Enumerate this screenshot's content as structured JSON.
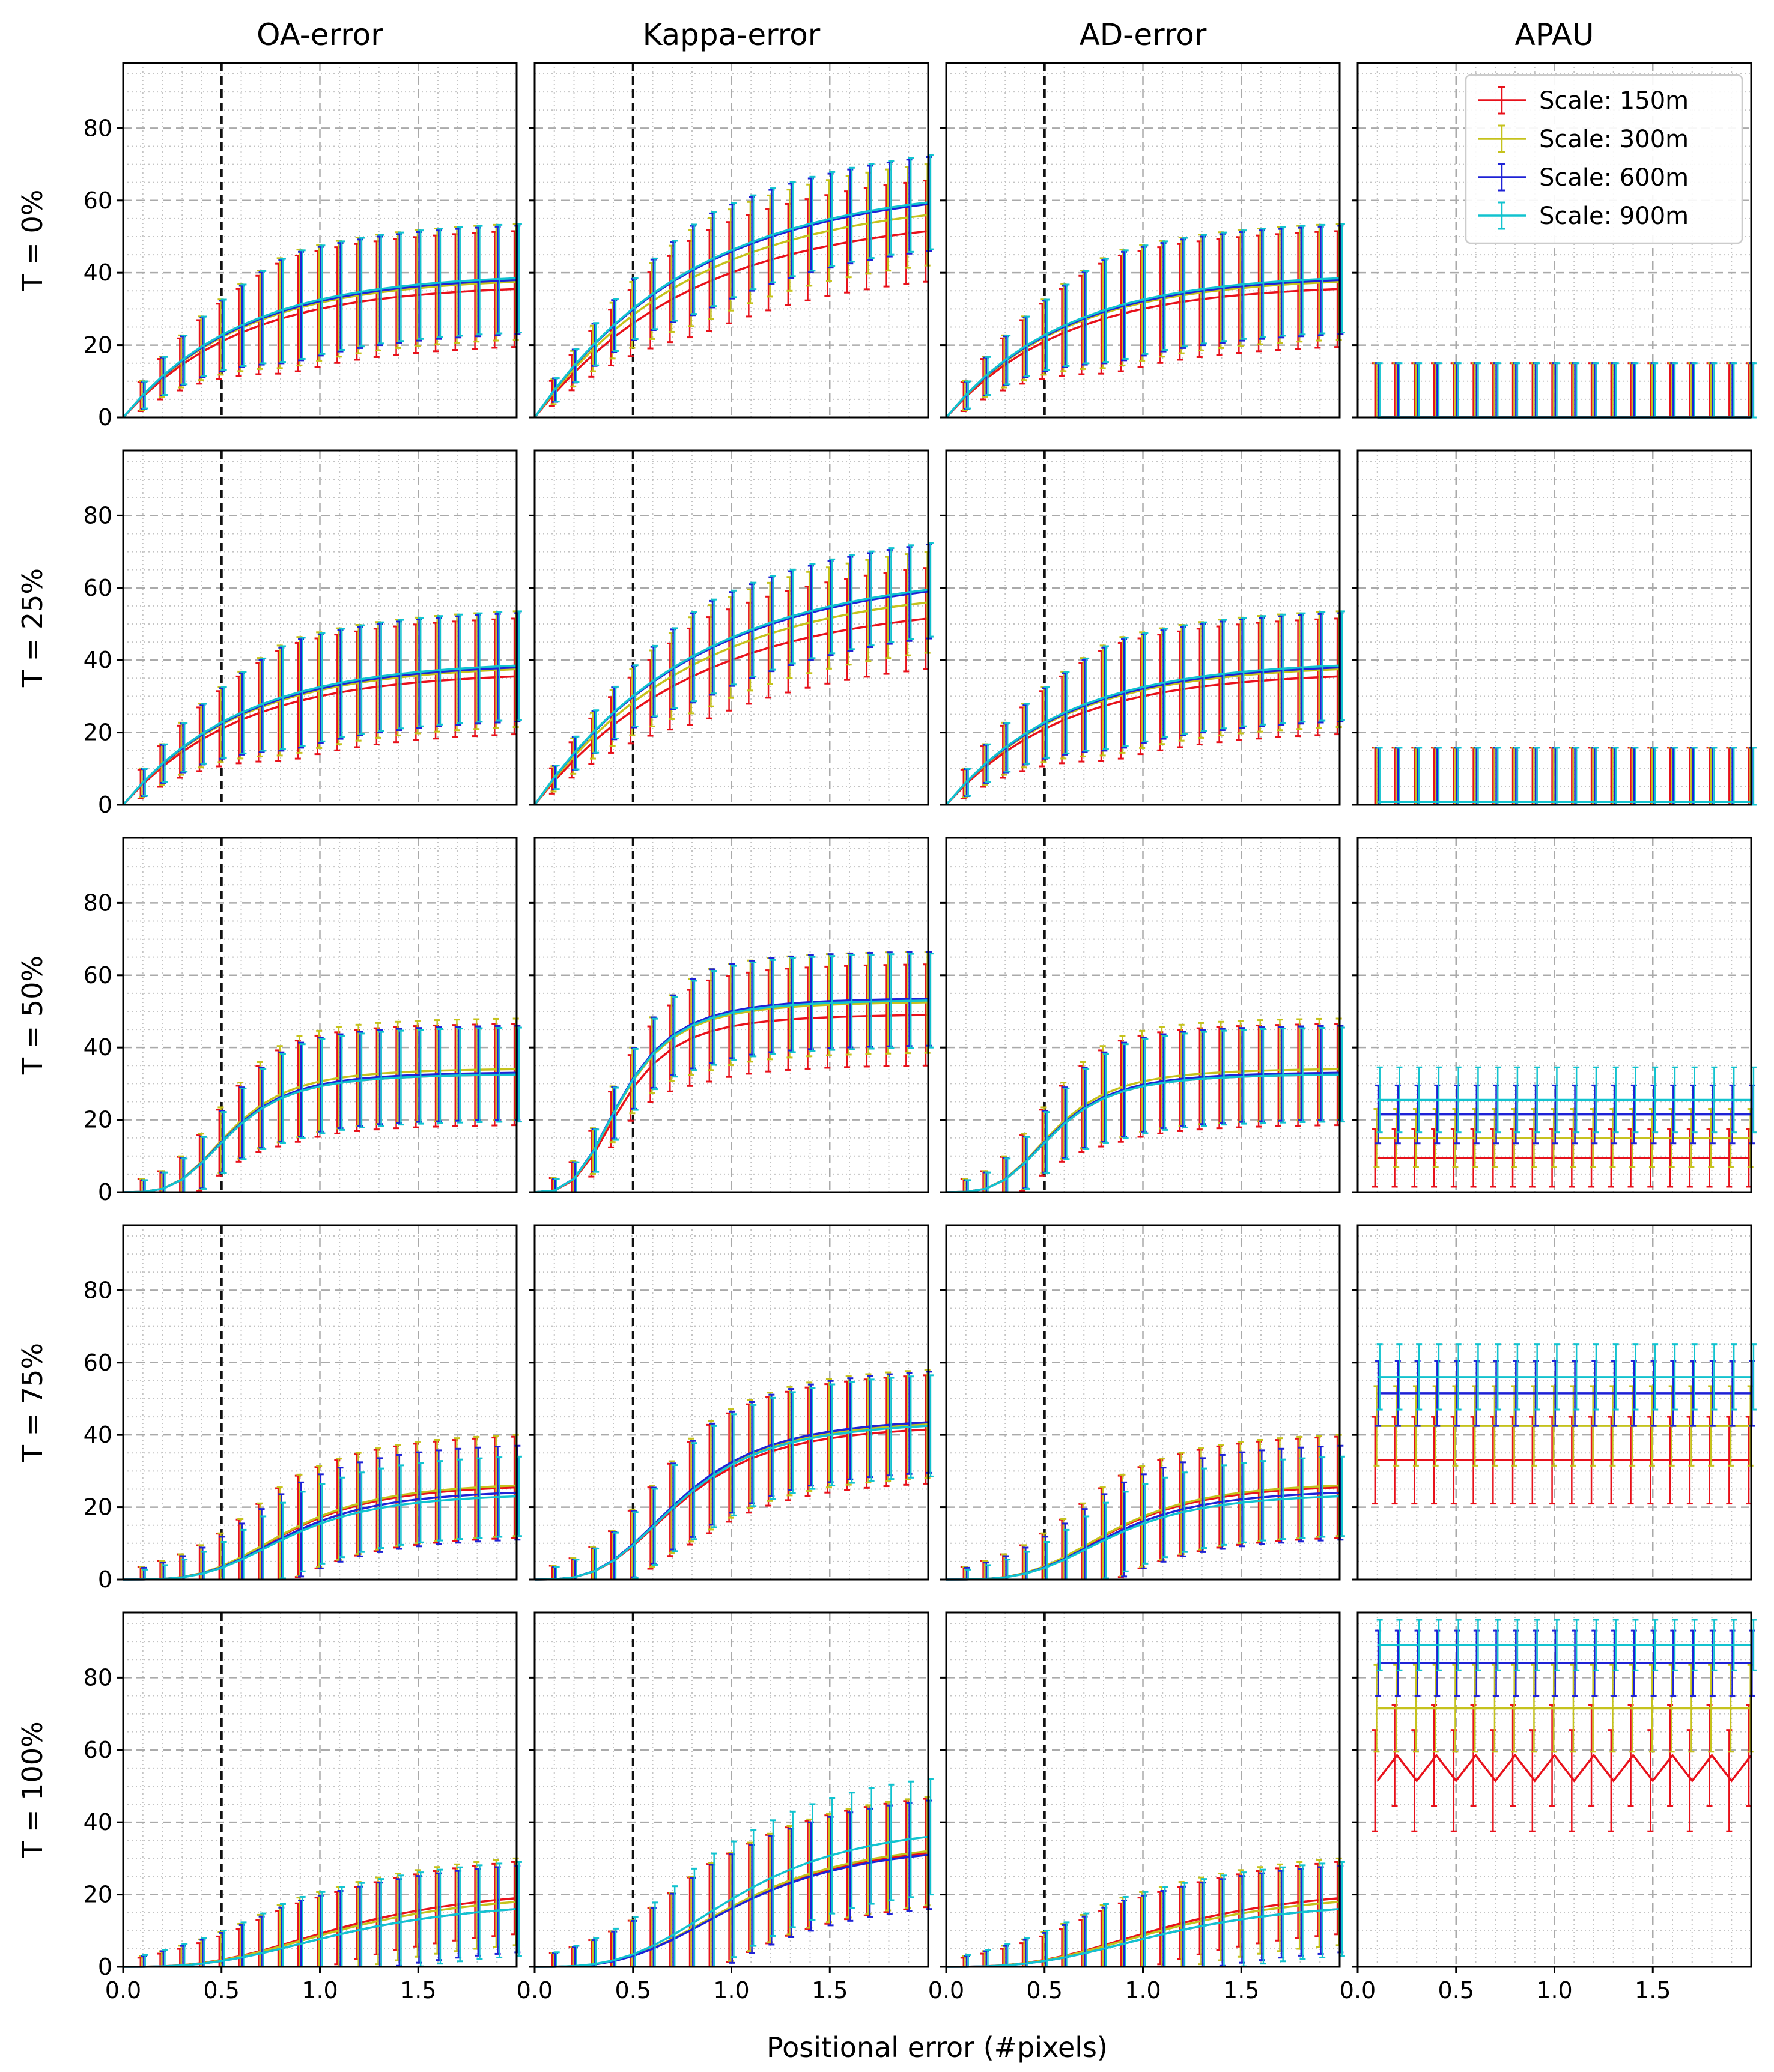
{
  "chart_data": {
    "type": "line",
    "title": "",
    "xlabel": "Positional error (#pixels)",
    "ylabel": "",
    "xlim": [
      0,
      2.0
    ],
    "ylim": [
      0,
      98
    ],
    "xticks": [
      0.0,
      0.5,
      1.0,
      1.5
    ],
    "xtick_labels": [
      "0.0",
      "0.5",
      "1.0",
      "1.5"
    ],
    "yticks": [
      0,
      20,
      40,
      60,
      80
    ],
    "ytick_labels": [
      "0",
      "20",
      "40",
      "60",
      "80"
    ],
    "grid": true,
    "reference_line_x": 0.5,
    "columns": [
      "OA-error",
      "Kappa-error",
      "AD-error",
      "APAU"
    ],
    "rows": [
      "T = 0%",
      "T = 25%",
      "T = 50%",
      "T = 75%",
      "T = 100%"
    ],
    "x": [
      0.0,
      0.1,
      0.2,
      0.3,
      0.4,
      0.5,
      0.6,
      0.7,
      0.8,
      0.9,
      1.0,
      1.1,
      1.2,
      1.3,
      1.4,
      1.5,
      1.6,
      1.7,
      1.8,
      1.9,
      2.0
    ],
    "legend": {
      "position": "upper right of APAU / T = 0% panel",
      "entries": [
        "Scale: 150m",
        "Scale: 300m",
        "Scale: 600m",
        "Scale: 900m"
      ]
    },
    "series_colors": {
      "Scale: 150m": "#e8111b",
      "Scale: 300m": "#c5c21c",
      "Scale: 600m": "#1e22d6",
      "Scale: 900m": "#12c3cf"
    },
    "panels": {
      "OA-error": {
        "T = 0%": {
          "curve": "saturating",
          "final": [
            35.5,
            37.5,
            38.0,
            38.5
          ],
          "k": 1.7,
          "err_final": [
            16,
            16,
            15,
            15
          ]
        },
        "T = 25%": {
          "curve": "saturating",
          "final": [
            35.5,
            37.5,
            38.0,
            38.5
          ],
          "k": 1.7,
          "err_final": [
            16,
            16,
            15,
            15
          ]
        },
        "T = 50%": {
          "curve": "sigmoid",
          "final": [
            32.5,
            34.0,
            33.0,
            32.5
          ],
          "mid": 0.55,
          "k": 2.2,
          "err_final": [
            14,
            14,
            13,
            13
          ]
        },
        "T = 75%": {
          "curve": "sigmoid",
          "final": [
            25.5,
            26.0,
            24.0,
            23.0
          ],
          "mid": 0.85,
          "k": 2.2,
          "err_final": [
            14,
            14,
            13,
            11
          ]
        },
        "T = 100%": {
          "curve": "sigmoid",
          "final": [
            19.0,
            18.0,
            16.0,
            16.0
          ],
          "mid": 1.15,
          "k": 1.8,
          "err_final": [
            10,
            12,
            12,
            13
          ]
        }
      },
      "Kappa-error": {
        "T = 0%": {
          "curve": "saturating",
          "final": [
            51.5,
            56.0,
            59.0,
            59.5
          ],
          "k": 1.25,
          "err_final": [
            14,
            14,
            13,
            13
          ]
        },
        "T = 25%": {
          "curve": "saturating",
          "final": [
            51.5,
            56.0,
            59.0,
            59.5
          ],
          "k": 1.25,
          "err_final": [
            14,
            14,
            13,
            13
          ]
        },
        "T = 50%": {
          "curve": "sigmoid",
          "final": [
            49.0,
            52.5,
            53.5,
            53.0
          ],
          "mid": 0.45,
          "k": 2.0,
          "err_final": [
            14,
            14,
            13,
            13
          ]
        },
        "T = 75%": {
          "curve": "sigmoid",
          "final": [
            41.5,
            43.0,
            43.5,
            42.5
          ],
          "mid": 0.75,
          "k": 2.0,
          "err_final": [
            15,
            15,
            14,
            14
          ]
        },
        "T = 100%": {
          "curve": "sigmoid",
          "final": [
            31.5,
            32.0,
            31.0,
            36.0
          ],
          "mid": 1.05,
          "k": 2.0,
          "err_final": [
            15,
            15,
            15,
            16
          ]
        }
      },
      "AD-error": {
        "T = 0%": {
          "curve": "saturating",
          "final": [
            35.5,
            37.5,
            38.0,
            38.5
          ],
          "k": 1.7,
          "err_final": [
            16,
            16,
            15,
            15
          ]
        },
        "T = 25%": {
          "curve": "saturating",
          "final": [
            35.5,
            37.5,
            38.0,
            38.5
          ],
          "k": 1.7,
          "err_final": [
            16,
            16,
            15,
            15
          ]
        },
        "T = 50%": {
          "curve": "sigmoid",
          "final": [
            32.5,
            34.0,
            33.0,
            32.5
          ],
          "mid": 0.55,
          "k": 2.2,
          "err_final": [
            14,
            14,
            13,
            13
          ]
        },
        "T = 75%": {
          "curve": "sigmoid",
          "final": [
            25.5,
            26.0,
            24.0,
            23.0
          ],
          "mid": 0.85,
          "k": 2.2,
          "err_final": [
            14,
            14,
            13,
            11
          ]
        },
        "T = 100%": {
          "curve": "sigmoid",
          "final": [
            19.0,
            18.0,
            16.0,
            16.0
          ],
          "mid": 1.15,
          "k": 1.8,
          "err_final": [
            10,
            12,
            12,
            13
          ]
        }
      },
      "APAU": {
        "T = 0%": {
          "curve": "flat",
          "final": [
            0.0,
            0.0,
            0.0,
            0.0
          ],
          "err_final": [
            15,
            15,
            15,
            15
          ]
        },
        "T = 25%": {
          "curve": "flat",
          "final": [
            0.8,
            0.8,
            0.8,
            0.8
          ],
          "err_final": [
            15,
            15,
            15,
            15
          ]
        },
        "T = 50%": {
          "curve": "flat",
          "final": [
            9.5,
            15.0,
            21.5,
            25.5
          ],
          "err_final": [
            8,
            8,
            8,
            9
          ]
        },
        "T = 75%": {
          "curve": "flat",
          "final": [
            33.0,
            42.5,
            51.5,
            56.0
          ],
          "err_final": [
            12,
            11,
            9,
            9
          ]
        },
        "T = 100%": {
          "curve": "flat",
          "final": [
            55.0,
            71.5,
            84.0,
            89.0
          ],
          "zigzag": 3.5,
          "err_final": [
            14,
            12,
            9,
            7
          ]
        }
      }
    }
  }
}
